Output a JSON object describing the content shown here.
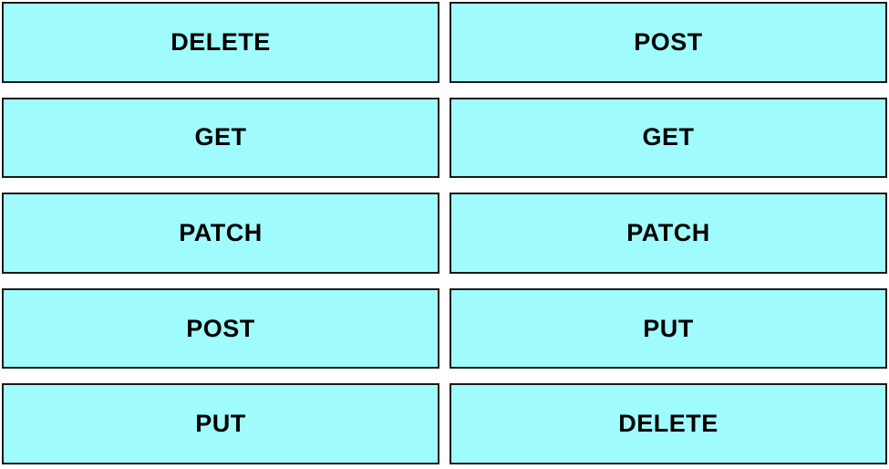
{
  "board": {
    "cells": [
      {
        "label": "DELETE",
        "column": "left",
        "row": 1
      },
      {
        "label": "POST",
        "column": "right",
        "row": 1
      },
      {
        "label": "GET",
        "column": "left",
        "row": 2
      },
      {
        "label": "GET",
        "column": "right",
        "row": 2
      },
      {
        "label": "PATCH",
        "column": "left",
        "row": 3
      },
      {
        "label": "PATCH",
        "column": "right",
        "row": 3
      },
      {
        "label": "POST",
        "column": "left",
        "row": 4
      },
      {
        "label": "PUT",
        "column": "right",
        "row": 4
      },
      {
        "label": "PUT",
        "column": "left",
        "row": 5
      },
      {
        "label": "DELETE",
        "column": "right",
        "row": 5
      }
    ],
    "colors": {
      "background": "#ffffff",
      "tile_fill": "#a0fbfc",
      "tile_border": "#1a1a1a",
      "text": "#000000"
    }
  }
}
